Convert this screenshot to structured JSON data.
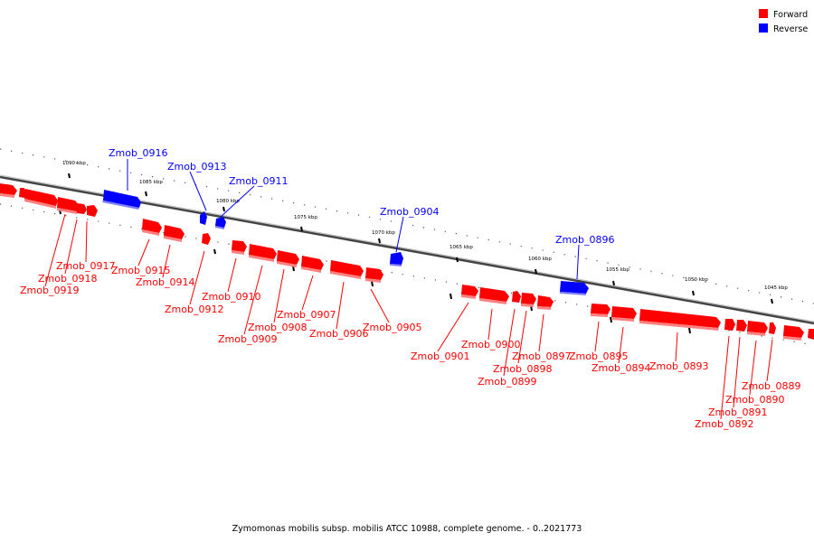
{
  "legend": {
    "forward_label": "Forward",
    "reverse_label": "Reverse",
    "forward_color": "#ff0000",
    "reverse_color": "#0000ff"
  },
  "caption": "Zymomonas mobilis subsp. mobilis ATCC 10988, complete genome. - 0..2021773",
  "kbp_ticks": [
    "1090 kbp",
    "1085 kbp",
    "1080 kbp",
    "1075 kbp",
    "1070 kbp",
    "1065 kbp",
    "1060 kbp",
    "1055 kbp",
    "1050 kbp",
    "1045 kbp"
  ],
  "reverse_genes": [
    "Zmob_0916",
    "Zmob_0913",
    "Zmob_0911",
    "Zmob_0904",
    "Zmob_0896"
  ],
  "forward_genes": [
    "Zmob_0917",
    "Zmob_0918",
    "Zmob_0919",
    "Zmob_0915",
    "Zmob_0914",
    "Zmob_0912",
    "Zmob_0910",
    "Zmob_0908",
    "Zmob_0909",
    "Zmob_0907",
    "Zmob_0906",
    "Zmob_0905",
    "Zmob_0901",
    "Zmob_0900",
    "Zmob_0898",
    "Zmob_0899",
    "Zmob_0897",
    "Zmob_0895",
    "Zmob_0894",
    "Zmob_0893",
    "Zmob_0889",
    "Zmob_0890",
    "Zmob_0891",
    "Zmob_0892"
  ]
}
